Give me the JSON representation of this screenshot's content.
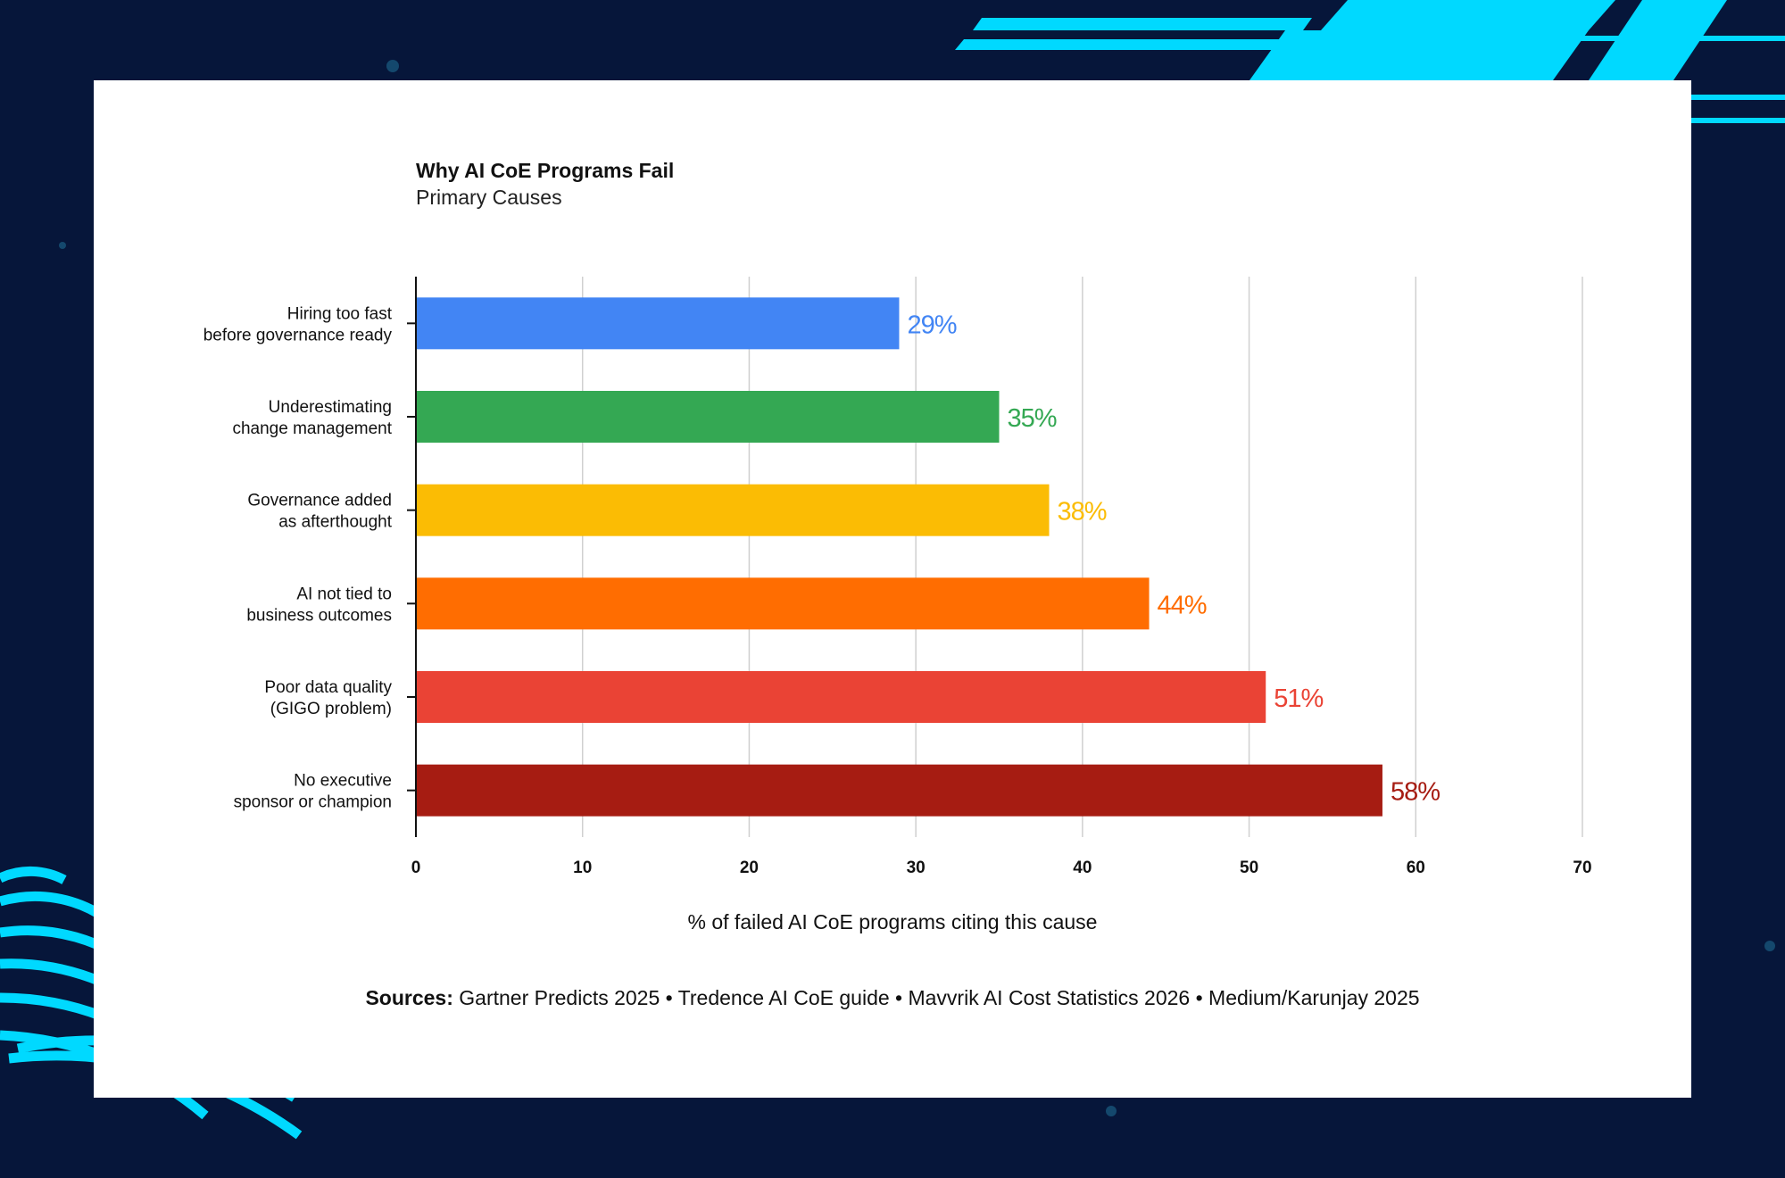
{
  "colors": {
    "background": "#06163a",
    "accent": "#00d9ff",
    "card": "#ffffff",
    "gridline": "#d0d0d0",
    "axis": "#111111"
  },
  "chart_data": {
    "type": "bar",
    "orientation": "horizontal",
    "title": "Why AI CoE Programs Fail",
    "subtitle": "Primary Causes",
    "xlabel": "% of failed AI CoE programs citing this cause",
    "ylabel": "",
    "xlim": [
      0,
      70
    ],
    "xticks": [
      0,
      10,
      20,
      30,
      40,
      50,
      60,
      70
    ],
    "grid": true,
    "categories": [
      [
        "Hiring too fast",
        "before governance ready"
      ],
      [
        "Underestimating",
        "change management"
      ],
      [
        "Governance added",
        "as afterthought"
      ],
      [
        "AI not tied to",
        "business outcomes"
      ],
      [
        "Poor data quality",
        "(GIGO problem)"
      ],
      [
        "No executive",
        "sponsor or champion"
      ]
    ],
    "values": [
      29,
      35,
      38,
      44,
      51,
      58
    ],
    "data_labels": [
      "29%",
      "35%",
      "38%",
      "44%",
      "51%",
      "58%"
    ],
    "colors": [
      "#4285f4",
      "#34a853",
      "#fbbc04",
      "#ff6d01",
      "#ea4335",
      "#a61c12"
    ]
  },
  "sources": {
    "label": "Sources:",
    "text": "Gartner Predicts 2025 • Tredence AI CoE guide • Mavvrik AI Cost Statistics 2026 • Medium/Karunjay 2025"
  }
}
